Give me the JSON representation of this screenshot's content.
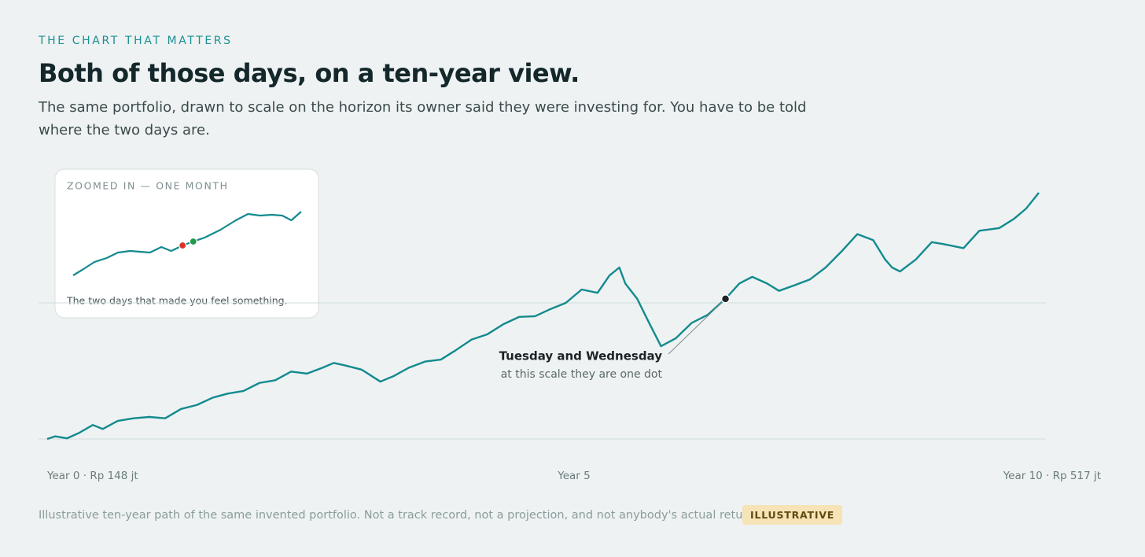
{
  "eyebrow": "THE CHART THAT MATTERS",
  "title": "Both of those days, on a ten-year view.",
  "subtitle": "The same portfolio, drawn to scale on the horizon its owner said they were investing for. You have to be told where the two days are.",
  "chart_data": [
    {
      "type": "line",
      "x": [
        0,
        0.08,
        0.2,
        0.32,
        0.46,
        0.56,
        0.71,
        0.87,
        1.03,
        1.19,
        1.35,
        1.51,
        1.67,
        1.82,
        1.98,
        2.14,
        2.3,
        2.46,
        2.62,
        2.78,
        2.89,
        3.01,
        3.17,
        3.36,
        3.49,
        3.65,
        3.81,
        3.97,
        4.12,
        4.28,
        4.44,
        4.6,
        4.76,
        4.92,
        5.08,
        5.23,
        5.39,
        5.55,
        5.67,
        5.77,
        5.83,
        5.95,
        6.07,
        6.19,
        6.34,
        6.5,
        6.66,
        6.84,
        6.98,
        7.11,
        7.26,
        7.38,
        7.53,
        7.69,
        7.85,
        8.01,
        8.17,
        8.33,
        8.45,
        8.52,
        8.6,
        8.76,
        8.92,
        9.04,
        9.24,
        9.4,
        9.6,
        9.75,
        9.87,
        10
      ],
      "series": [
        {
          "color": "#138a8f",
          "values": [
            148,
            152,
            149,
            157,
            169,
            163,
            175,
            179,
            181,
            179,
            193,
            199,
            210,
            216,
            220,
            232,
            236,
            249,
            246,
            255,
            262,
            258,
            252,
            234,
            242,
            255,
            264,
            267,
            281,
            297,
            305,
            320,
            331,
            332,
            343,
            352,
            372,
            367,
            393,
            405,
            381,
            358,
            322,
            287,
            299,
            322,
            334,
            358,
            381,
            391,
            381,
            370,
            378,
            387,
            405,
            429,
            455,
            446,
            417,
            405,
            399,
            417,
            443,
            440,
            434,
            460,
            464,
            478,
            493,
            517
          ]
        }
      ],
      "xlim": [
        0,
        10
      ],
      "ylim": [
        148,
        517
      ],
      "grid_lines": [
        148,
        352
      ],
      "xticks": [
        {
          "value": 0,
          "label": "Year 0 · Rp 148 jt"
        },
        {
          "value": 5,
          "label": "Year 5"
        },
        {
          "value": 10,
          "label": "Year 10 · Rp 517 jt"
        }
      ],
      "annotation": {
        "title": "Tuesday and Wednesday",
        "text": "at this scale they are one dot",
        "x": 6.84,
        "value": 358,
        "color": "#1c2326"
      }
    },
    {
      "type": "line",
      "title": "ZOOMED IN — ONE MONTH",
      "caption": "The two days that made you feel something.",
      "x": [
        0,
        1.2,
        2.8,
        4.4,
        5.9,
        7.5,
        10.1,
        11.6,
        12.9,
        14.4,
        15.8,
        17.3,
        19.4,
        21.4,
        23,
        24.6,
        26.1,
        27.5,
        28.7,
        30
      ],
      "series": [
        {
          "color": "#138a8f",
          "values": [
            10,
            17,
            27,
            32,
            39,
            41,
            39,
            46,
            41,
            48,
            53,
            58,
            68,
            80,
            88,
            86,
            87,
            86,
            80,
            91
          ]
        }
      ],
      "xlim": [
        0,
        30
      ],
      "ylim": [
        0,
        100
      ],
      "markers": [
        {
          "x": 14.4,
          "value": 48,
          "color": "#d9342b"
        },
        {
          "x": 15.8,
          "value": 53,
          "color": "#1f9a4b"
        }
      ]
    }
  ],
  "footer": {
    "note": "Illustrative ten-year path of the same invented portfolio. Not a track record, not a projection, and not anybody's actual returns.",
    "badge": "ILLUSTRATIVE"
  }
}
